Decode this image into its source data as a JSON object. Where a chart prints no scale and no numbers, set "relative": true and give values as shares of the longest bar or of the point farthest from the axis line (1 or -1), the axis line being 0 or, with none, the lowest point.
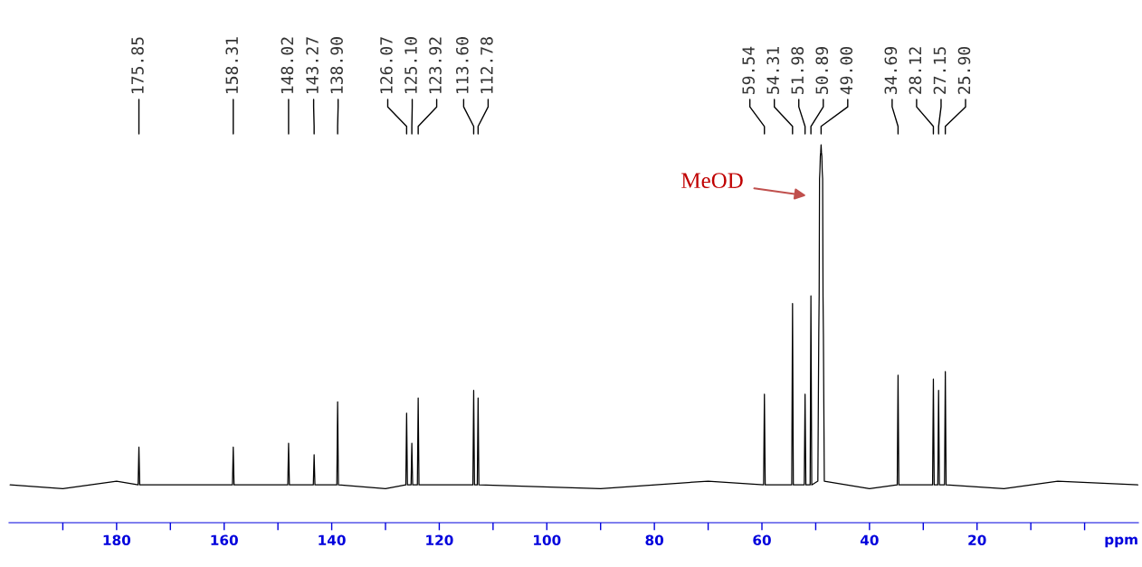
{
  "chart_data": {
    "type": "line",
    "relative": true,
    "xlabel": "ppm",
    "xlim": [
      200,
      -10
    ],
    "xticks": [
      {
        "value": 190,
        "label": null
      },
      180,
      {
        "value": 170,
        "label": null
      },
      160,
      {
        "value": 150,
        "label": null
      },
      140,
      {
        "value": 130,
        "label": null
      },
      120,
      {
        "value": 110,
        "label": null
      },
      100,
      {
        "value": 90,
        "label": null
      },
      80,
      {
        "value": 70,
        "label": null
      },
      60,
      {
        "value": 50,
        "label": null
      },
      40,
      {
        "value": 30,
        "label": null
      },
      20,
      {
        "value": 10,
        "label": null
      },
      {
        "value": 0,
        "label": null
      }
    ],
    "grid": false,
    "marker": "none",
    "line_style": "solid",
    "series": [
      {
        "color": "#000000",
        "x": [
          199.8,
          190,
          180,
          176.0,
          175.85,
          175.7,
          158.46,
          158.31,
          158.16,
          148.17,
          148.02,
          147.87,
          143.42,
          143.27,
          143.12,
          139.05,
          138.9,
          138.75,
          130,
          126.22,
          126.07,
          125.92,
          125.25,
          125.1,
          124.95,
          124.07,
          123.92,
          123.77,
          113.75,
          113.6,
          113.45,
          112.93,
          112.78,
          112.63,
          90,
          70,
          59.69,
          59.54,
          59.39,
          54.46,
          54.31,
          54.16,
          52.13,
          51.98,
          51.83,
          51.04,
          50.89,
          50.74,
          49.6,
          49.43,
          49.36,
          49.29,
          49.22,
          49.14,
          49.07,
          49.0,
          48.93,
          48.86,
          48.79,
          48.71,
          48.64,
          48.57,
          48.4,
          40,
          34.84,
          34.69,
          34.54,
          28.27,
          28.12,
          27.97,
          27.3,
          27.15,
          27.0,
          26.05,
          25.9,
          25.75,
          15,
          5,
          -9.9
        ],
        "values": [
          0.1,
          0.09,
          0.11,
          0.1,
          0.2,
          0.1,
          0.1,
          0.2,
          0.1,
          0.1,
          0.21,
          0.1,
          0.1,
          0.18,
          0.1,
          0.1,
          0.32,
          0.1,
          0.09,
          0.1,
          0.29,
          0.1,
          0.1,
          0.21,
          0.1,
          0.1,
          0.33,
          0.1,
          0.1,
          0.35,
          0.1,
          0.1,
          0.33,
          0.1,
          0.09,
          0.11,
          0.1,
          0.34,
          0.1,
          0.1,
          0.58,
          0.1,
          0.1,
          0.34,
          0.1,
          0.1,
          0.6,
          0.1,
          0.11,
          0.5,
          0.6,
          0.91,
          0.93,
          0.97,
          0.98,
          1.0,
          0.98,
          0.97,
          0.93,
          0.91,
          0.6,
          0.5,
          0.11,
          0.09,
          0.1,
          0.39,
          0.1,
          0.1,
          0.38,
          0.1,
          0.1,
          0.35,
          0.1,
          0.1,
          0.4,
          0.1,
          0.09,
          0.11,
          0.1
        ]
      }
    ],
    "annotations": [
      "175.85",
      "158.31",
      "148.02",
      "143.27",
      "138.90",
      "126.07",
      "125.10",
      "123.92",
      "113.60",
      "112.78",
      "59.54",
      "54.31",
      "51.98",
      "50.89",
      "49.00",
      "34.69",
      "28.12",
      "27.15",
      "25.90",
      "MeOD"
    ]
  }
}
